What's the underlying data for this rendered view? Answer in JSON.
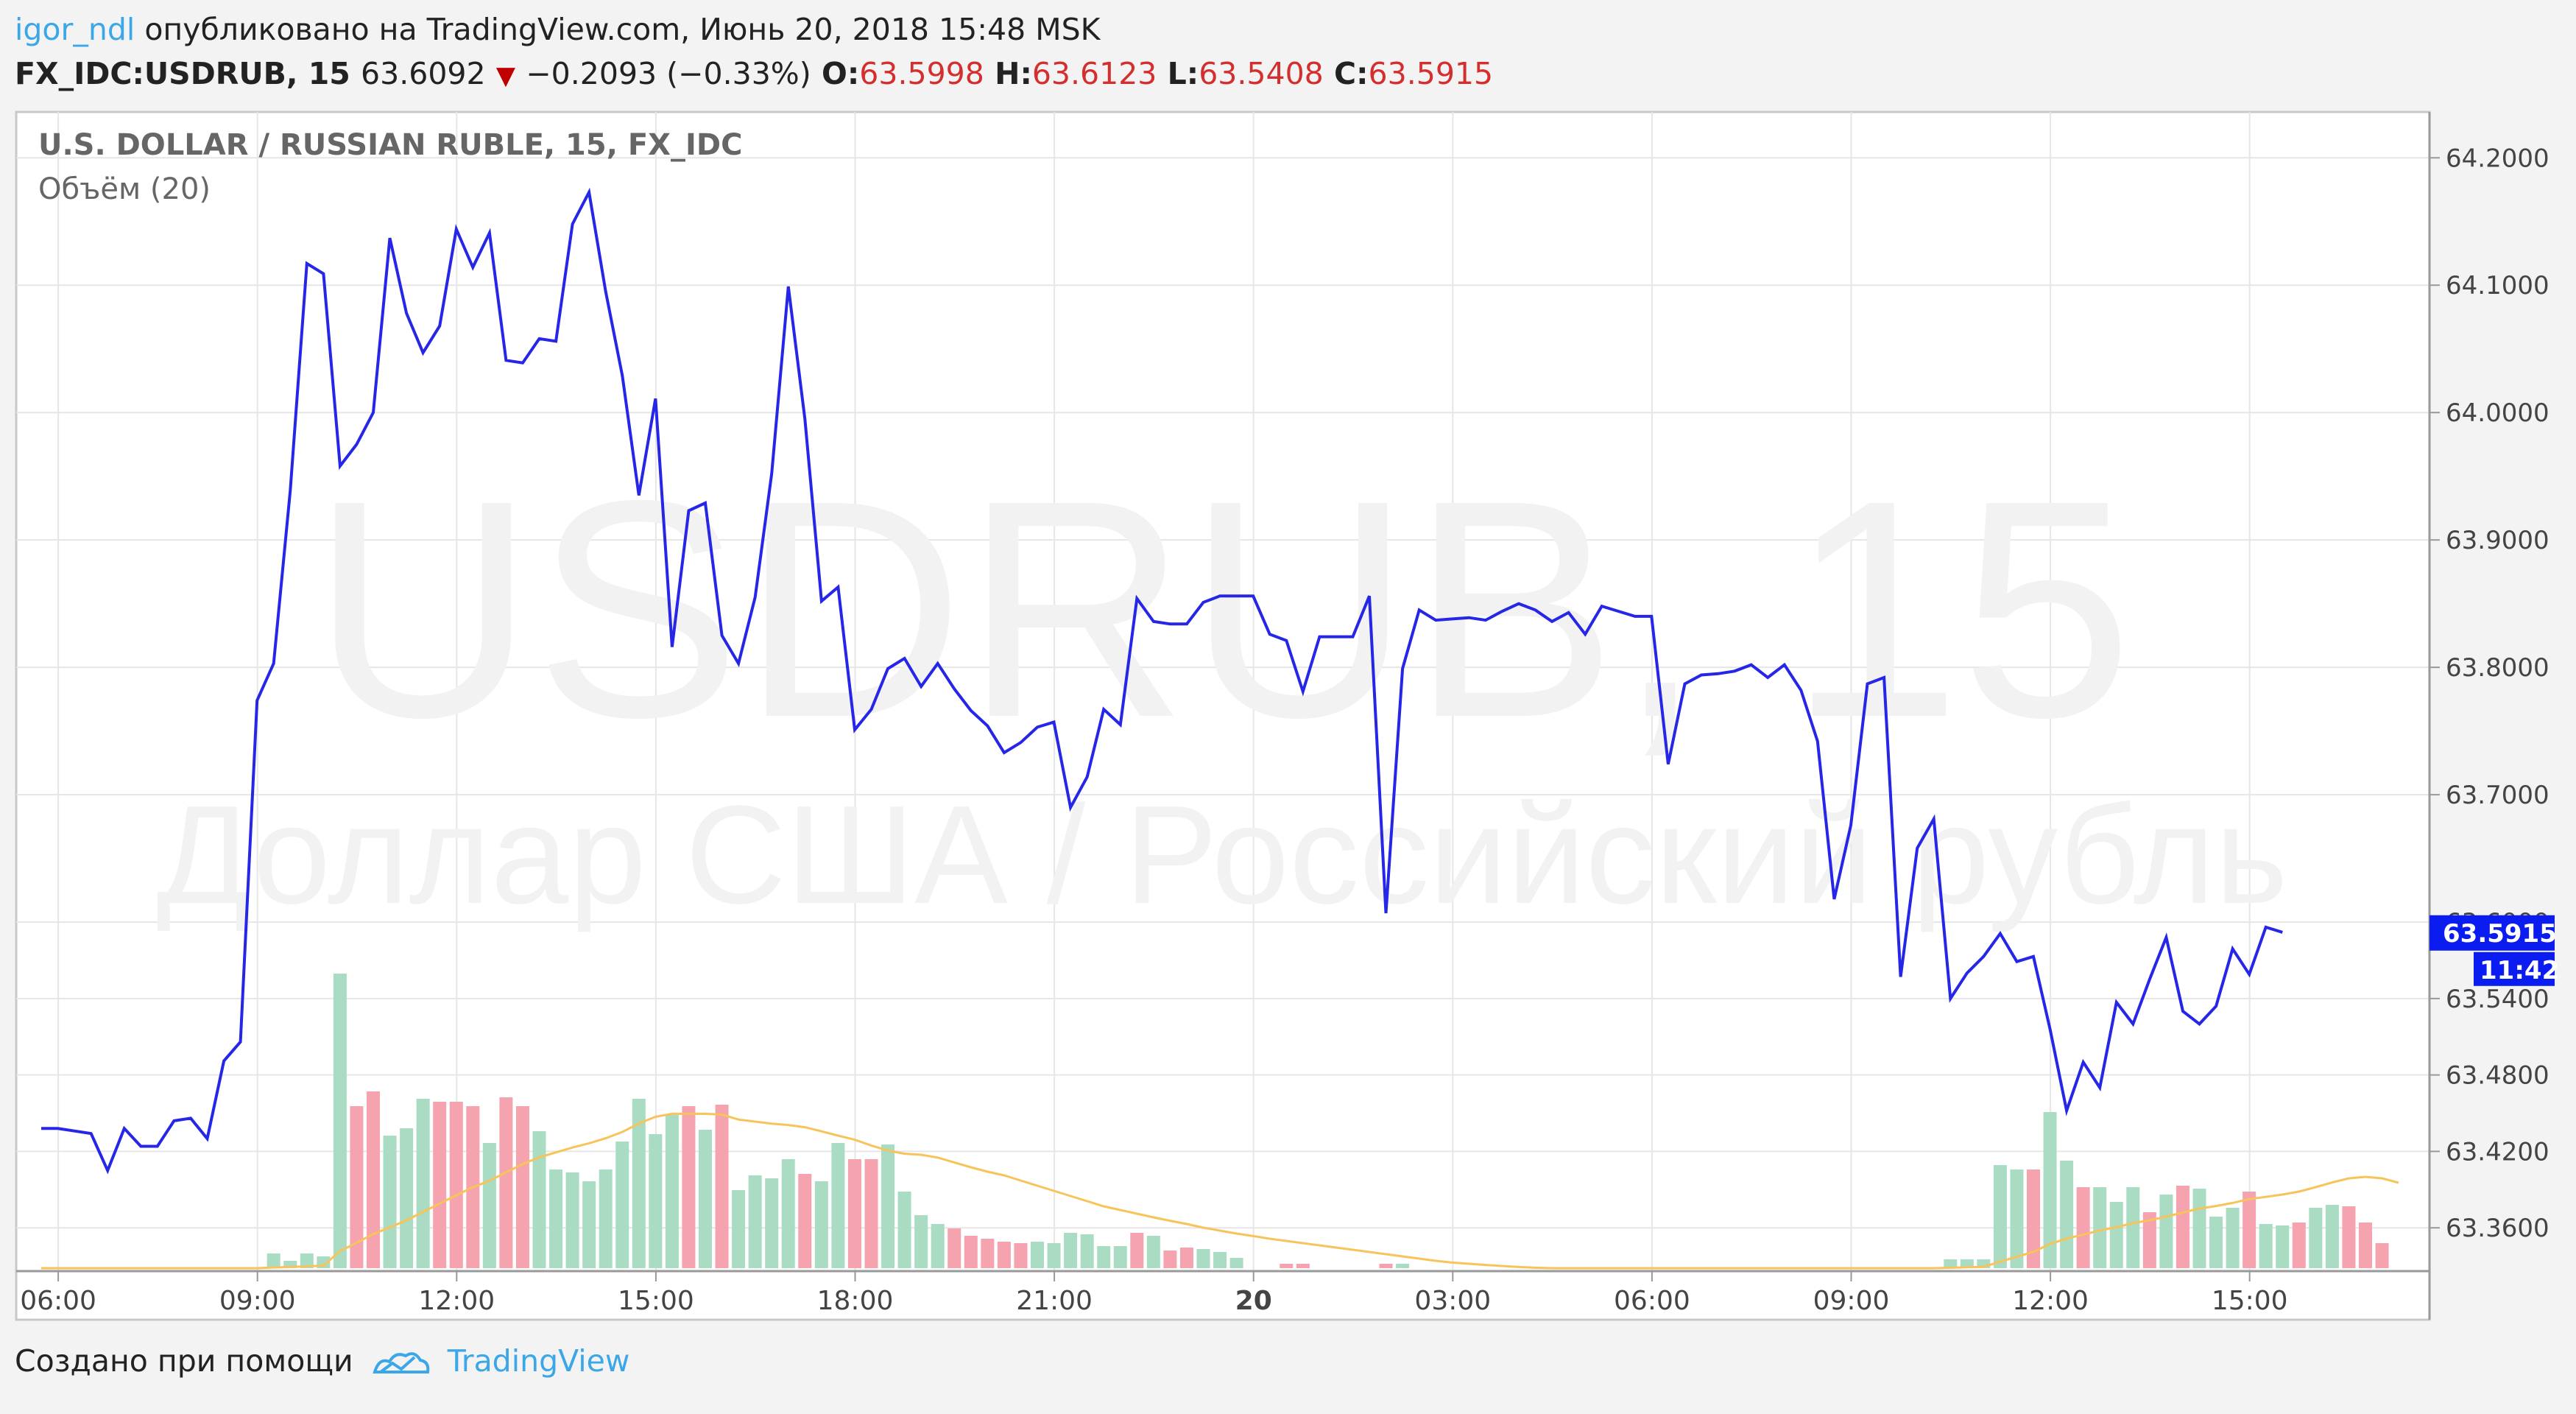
{
  "header": {
    "user": "igor_ndl",
    "published_text": "опубликовано на TradingView.com, Июнь 20, 2018 15:48 MSK",
    "symbol": "FX_IDC:USDRUB, 15",
    "last": "63.6092",
    "change": "−0.2093 (−0.33%)",
    "o_label": "O:",
    "o_value": "63.5998",
    "h_label": "H:",
    "h_value": "63.6123",
    "l_label": "L:",
    "l_value": "63.5408",
    "c_label": "C:",
    "c_value": "63.5915"
  },
  "legend": {
    "title": "U.S. DOLLAR / RUSSIAN RUBLE, 15, FX_IDC",
    "volume": "Объём (20)"
  },
  "watermark": {
    "symbol": "USDRUB, 15",
    "name": "Доллар США / Российский рубль"
  },
  "badges": {
    "price": "63.5915",
    "countdown": "11:42"
  },
  "footer": {
    "created_with": "Создано при помощи",
    "brand": "TradingView"
  },
  "colors": {
    "price_line": "#2626e8",
    "volume_up": "#a9dcc3",
    "volume_down": "#f5a3ae",
    "volume_ma": "#f7c35a",
    "badge": "#0b1cf0"
  },
  "chart_data": {
    "type": "line",
    "title": "U.S. DOLLAR / RUSSIAN RUBLE, 15, FX_IDC",
    "ylim": [
      63.326,
      64.236
    ],
    "y_ticks": [
      "64.2000",
      "64.1000",
      "64.0000",
      "63.9000",
      "63.8000",
      "63.7000",
      "63.6000",
      "63.5400",
      "63.4800",
      "63.4200",
      "63.3600"
    ],
    "x_ticks": [
      "06:00",
      "09:00",
      "12:00",
      "15:00",
      "18:00",
      "21:00",
      "20",
      "03:00",
      "06:00",
      "09:00",
      "12:00",
      "15:00"
    ],
    "x_tick_index": [
      2,
      14,
      26,
      38,
      50,
      62,
      74,
      86,
      98,
      110,
      122,
      134
    ],
    "grid": true,
    "series": [
      {
        "values": [
          63.438,
          63.438,
          63.436,
          63.434,
          63.405,
          63.438,
          63.424,
          63.424,
          63.444,
          63.446,
          63.43,
          63.491,
          63.506,
          63.774,
          63.803,
          63.939,
          64.117,
          64.109,
          63.958,
          63.975,
          64.0,
          64.137,
          64.078,
          64.047,
          64.068,
          64.144,
          64.114,
          64.141,
          64.041,
          64.039,
          64.058,
          64.056,
          64.148,
          64.173,
          64.095,
          64.029,
          63.935,
          64.011,
          63.816,
          63.923,
          63.929,
          63.825,
          63.803,
          63.855,
          63.952,
          64.099,
          63.995,
          63.852,
          63.863,
          63.751,
          63.767,
          63.799,
          63.807,
          63.785,
          63.803,
          63.783,
          63.766,
          63.754,
          63.733,
          63.741,
          63.753,
          63.757,
          63.69,
          63.714,
          63.767,
          63.755,
          63.854,
          63.836,
          63.834,
          63.834,
          63.851,
          63.856,
          63.856,
          63.856,
          63.826,
          63.821,
          63.781,
          63.824,
          63.824,
          63.824,
          63.856,
          63.607,
          63.799,
          63.845,
          63.837,
          63.838,
          63.839,
          63.837,
          63.844,
          63.85,
          63.845,
          63.836,
          63.843,
          63.826,
          63.848,
          63.844,
          63.84,
          63.84,
          63.724,
          63.787,
          63.794,
          63.795,
          63.797,
          63.802,
          63.792,
          63.802,
          63.782,
          63.742,
          63.618,
          63.676,
          63.787,
          63.792,
          63.557,
          63.658,
          63.681,
          63.54,
          63.56,
          63.573,
          63.591,
          63.569,
          63.573,
          63.516,
          63.452,
          63.49,
          63.47,
          63.537,
          63.52,
          63.555,
          63.588,
          63.53,
          63.52,
          63.534,
          63.579,
          63.559,
          63.596,
          63.592
        ]
      },
      {
        "name": "Объём (20)",
        "volumes": [
          0,
          0,
          0,
          0,
          0,
          0,
          0,
          0,
          0,
          0,
          0,
          0,
          0,
          0,
          1,
          0.5,
          1,
          0.8,
          20,
          11,
          12,
          9,
          9.5,
          11.5,
          11.3,
          11.3,
          11,
          8.5,
          11.6,
          11,
          9.3,
          6.7,
          6.5,
          5.9,
          6.7,
          8.6,
          11.5,
          9.1,
          10.4,
          11,
          9.4,
          11.1,
          5.3,
          6.3,
          6.1,
          7.4,
          6.4,
          5.9,
          8.5,
          7.4,
          7.4,
          8.4,
          5.2,
          3.6,
          3,
          2.7,
          2.2,
          2,
          1.8,
          1.7,
          1.8,
          1.7,
          2.4,
          2.3,
          1.5,
          1.5,
          2.4,
          2.2,
          1.2,
          1.4,
          1.3,
          1.1,
          0.7,
          0,
          0,
          0.3,
          0.3,
          0,
          0,
          0,
          0,
          0.3,
          0.3,
          0,
          0,
          0,
          0,
          0,
          0,
          0,
          0,
          0,
          0,
          0,
          0,
          0,
          0,
          0,
          0,
          0,
          0,
          0,
          0,
          0,
          0,
          0,
          0,
          0,
          0,
          0,
          0,
          0,
          0,
          0,
          0,
          0.6,
          0.6,
          0.6,
          7,
          6.7,
          6.7,
          10.6,
          7.3,
          5.5,
          5.5,
          4.5,
          5.5,
          3.8,
          5,
          5.6,
          5.4,
          3.5,
          4.1,
          5.2,
          3,
          2.9,
          3.1,
          4.1,
          4.3,
          4.2,
          3.1,
          1.7
        ],
        "directions": [
          1,
          1,
          1,
          1,
          1,
          1,
          1,
          1,
          1,
          1,
          1,
          1,
          1,
          1,
          1,
          1,
          1,
          1,
          1,
          0,
          0,
          1,
          1,
          1,
          0,
          0,
          0,
          1,
          0,
          0,
          1,
          1,
          1,
          1,
          1,
          1,
          1,
          1,
          1,
          0,
          1,
          0,
          1,
          1,
          1,
          1,
          0,
          1,
          1,
          0,
          0,
          1,
          1,
          1,
          1,
          0,
          0,
          0,
          0,
          0,
          1,
          1,
          1,
          1,
          1,
          1,
          0,
          1,
          0,
          0,
          1,
          1,
          1,
          1,
          0,
          0,
          0,
          1,
          1,
          1,
          0,
          0,
          1,
          1,
          1,
          1,
          1,
          1,
          1,
          1,
          1,
          1,
          1,
          1,
          1,
          1,
          1,
          1,
          1,
          1,
          1,
          1,
          1,
          1,
          1,
          1,
          1,
          1,
          1,
          1,
          1,
          1,
          1,
          1,
          1,
          1,
          1,
          1,
          1,
          1,
          0,
          1,
          1,
          0,
          1,
          1,
          1,
          0,
          1,
          0,
          1,
          1,
          1,
          0,
          1,
          1,
          0,
          1,
          1,
          0,
          0,
          0,
          1,
          1,
          1,
          1
        ],
        "ma": [
          0,
          0,
          0,
          0,
          0,
          0,
          0,
          0,
          0,
          0,
          0,
          0,
          0,
          0,
          0.05,
          0.08,
          0.13,
          0.17,
          1.17,
          1.72,
          2.32,
          2.77,
          3.25,
          3.82,
          4.39,
          4.95,
          5.5,
          5.93,
          6.51,
          7.06,
          7.53,
          7.86,
          8.19,
          8.48,
          8.82,
          9.25,
          9.82,
          10.28,
          10.48,
          10.48,
          10.48,
          10.43,
          10.09,
          9.95,
          9.81,
          9.72,
          9.57,
          9.29,
          9.0,
          8.72,
          8.33,
          7.99,
          7.77,
          7.7,
          7.51,
          7.18,
          6.85,
          6.55,
          6.3,
          5.95,
          5.6,
          5.25,
          4.9,
          4.55,
          4.2,
          3.95,
          3.7,
          3.45,
          3.22,
          3.0,
          2.75,
          2.55,
          2.35,
          2.18,
          2.0,
          1.85,
          1.7,
          1.55,
          1.4,
          1.25,
          1.1,
          0.95,
          0.8,
          0.65,
          0.5,
          0.38,
          0.3,
          0.22,
          0.15,
          0.08,
          0.03,
          0,
          0,
          0,
          0,
          0,
          0,
          0,
          0,
          0,
          0,
          0,
          0,
          0,
          0,
          0,
          0,
          0,
          0,
          0,
          0,
          0,
          0,
          0,
          0,
          0.03,
          0.06,
          0.09,
          0.44,
          0.78,
          1.11,
          1.64,
          2.01,
          2.28,
          2.56,
          2.78,
          3.06,
          3.25,
          3.5,
          3.78,
          4.05,
          4.22,
          4.43,
          4.69,
          4.84,
          5.0,
          5.2,
          5.5,
          5.82,
          6.1,
          6.2,
          6.1,
          5.8
        ]
      }
    ],
    "last_price": 63.5915
  }
}
